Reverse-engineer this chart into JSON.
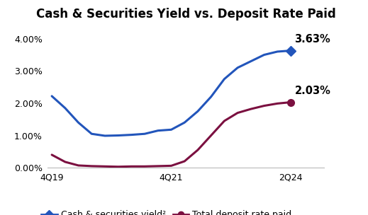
{
  "title": "Cash & Securities Yield vs. Deposit Rate Paid",
  "x_labels": [
    "4Q19",
    "4Q21",
    "2Q24"
  ],
  "x_tick_positions": [
    0,
    9,
    18
  ],
  "blue_line": {
    "x": [
      0,
      1,
      2,
      3,
      4,
      5,
      6,
      7,
      8,
      9,
      10,
      11,
      12,
      13,
      14,
      15,
      16,
      17,
      18
    ],
    "y": [
      0.0222,
      0.0185,
      0.014,
      0.0105,
      0.0099,
      0.01,
      0.0102,
      0.0105,
      0.0115,
      0.0118,
      0.014,
      0.0175,
      0.022,
      0.0275,
      0.031,
      0.033,
      0.035,
      0.036,
      0.0363
    ],
    "color": "#2255BB",
    "label": "Cash & securities yield²",
    "end_label": "3.63%"
  },
  "red_line": {
    "x": [
      0,
      1,
      2,
      3,
      4,
      5,
      6,
      7,
      8,
      9,
      10,
      11,
      12,
      13,
      14,
      15,
      16,
      17,
      18
    ],
    "y": [
      0.004,
      0.0018,
      0.0007,
      0.0005,
      0.0004,
      0.0003,
      0.0004,
      0.0004,
      0.0005,
      0.0006,
      0.002,
      0.0055,
      0.01,
      0.0145,
      0.017,
      0.0182,
      0.0192,
      0.0199,
      0.0203
    ],
    "color": "#7B1040",
    "label": "Total deposit rate paid",
    "end_label": "2.03%"
  },
  "xlim": [
    -0.3,
    20.5
  ],
  "ylim": [
    0.0,
    0.044
  ],
  "yticks": [
    0.0,
    0.01,
    0.02,
    0.03,
    0.04
  ],
  "background_color": "#ffffff",
  "title_fontsize": 12,
  "label_fontsize": 9,
  "legend_fontsize": 9,
  "annotation_fontsize": 10.5,
  "linewidth": 2.2
}
